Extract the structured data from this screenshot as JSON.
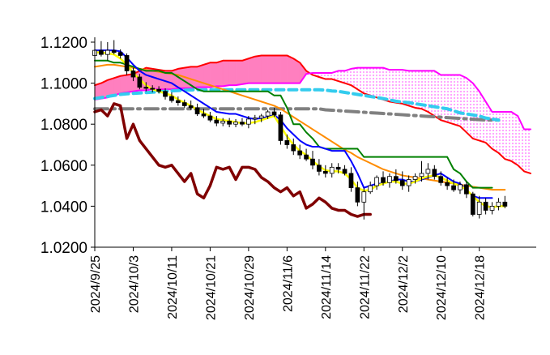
{
  "chart_data": {
    "type": "candlestick",
    "title": "",
    "xlabel": "",
    "ylabel": "",
    "ylim": [
      1.02,
      1.12
    ],
    "y_ticks": [
      "1.1200",
      "1.1000",
      "1.0800",
      "1.0600",
      "1.0400",
      "1.0200"
    ],
    "y_tick_values": [
      1.12,
      1.1,
      1.08,
      1.06,
      1.04,
      1.02
    ],
    "x_tick_labels": [
      "2024/9/25",
      "2024/10/3",
      "2024/10/11",
      "2024/10/21",
      "2024/10/29",
      "2024/11/6",
      "2024/11/14",
      "2024/11/22",
      "2024/12/2",
      "2024/12/10",
      "2024/12/18"
    ],
    "x_tick_index": [
      0,
      6,
      12,
      18,
      24,
      30,
      36,
      42,
      48,
      54,
      60
    ],
    "n_slots": 69,
    "grid": false,
    "legend": "none",
    "colors": {
      "up": "#ffffff",
      "down": "#000000",
      "cloud_bull": "#ff7fbf",
      "cloud_bear": "#ff66ff",
      "span_a": "#ff0000",
      "span_b": "#ff00ff",
      "tenkan": "#0000ff",
      "kijun": "#008000",
      "chikou": "#800000",
      "ma_orange": "#ff8c00",
      "ma_yellow": "#ffff00",
      "trend_gray": "#808080",
      "trend_cyan": "#33ccee"
    },
    "candles": [
      [
        1.1135,
        1.1175,
        1.112,
        1.116
      ],
      [
        1.116,
        1.1205,
        1.113,
        1.114
      ],
      [
        1.114,
        1.12,
        1.111,
        1.116
      ],
      [
        1.116,
        1.121,
        1.114,
        1.115
      ],
      [
        1.115,
        1.1165,
        1.112,
        1.1135
      ],
      [
        1.1135,
        1.1145,
        1.104,
        1.106
      ],
      [
        1.106,
        1.1075,
        1.101,
        1.103
      ],
      [
        1.103,
        1.1045,
        1.097,
        1.098
      ],
      [
        1.098,
        1.1005,
        1.096,
        1.0975
      ],
      [
        1.0975,
        1.099,
        1.0955,
        1.097
      ],
      [
        1.097,
        1.0985,
        1.095,
        1.096
      ],
      [
        1.096,
        1.0975,
        1.092,
        1.0935
      ],
      [
        1.0935,
        1.0955,
        1.0905,
        1.0915
      ],
      [
        1.0915,
        1.0935,
        1.089,
        1.0905
      ],
      [
        1.0905,
        1.092,
        1.088,
        1.089
      ],
      [
        1.089,
        1.0915,
        1.087,
        1.088
      ],
      [
        1.088,
        1.09,
        1.084,
        1.085
      ],
      [
        1.085,
        1.0875,
        1.083,
        1.084
      ],
      [
        1.084,
        1.086,
        1.081,
        1.082
      ],
      [
        1.082,
        1.084,
        1.079,
        1.0805
      ],
      [
        1.0805,
        1.083,
        1.079,
        1.0815
      ],
      [
        1.0815,
        1.083,
        1.0785,
        1.08
      ],
      [
        1.08,
        1.0825,
        1.0785,
        1.081
      ],
      [
        1.081,
        1.083,
        1.079,
        1.08
      ],
      [
        1.08,
        1.084,
        1.078,
        1.0825
      ],
      [
        1.0825,
        1.0845,
        1.08,
        1.083
      ],
      [
        1.083,
        1.085,
        1.081,
        1.084
      ],
      [
        1.084,
        1.087,
        1.0825,
        1.086
      ],
      [
        1.086,
        1.088,
        1.0835,
        1.0845
      ],
      [
        1.0845,
        1.086,
        1.07,
        1.072
      ],
      [
        1.072,
        1.075,
        1.068,
        1.07
      ],
      [
        1.07,
        1.073,
        1.065,
        1.067
      ],
      [
        1.067,
        1.07,
        1.063,
        1.065
      ],
      [
        1.065,
        1.068,
        1.062,
        1.063
      ],
      [
        1.063,
        1.067,
        1.058,
        1.06
      ],
      [
        1.06,
        1.063,
        1.055,
        1.057
      ],
      [
        1.057,
        1.06,
        1.054,
        1.056
      ],
      [
        1.056,
        1.061,
        1.054,
        1.059
      ],
      [
        1.059,
        1.061,
        1.056,
        1.058
      ],
      [
        1.058,
        1.06,
        1.055,
        1.056
      ],
      [
        1.056,
        1.059,
        1.047,
        1.049
      ],
      [
        1.049,
        1.052,
        1.04,
        1.042
      ],
      [
        1.042,
        1.049,
        1.0335,
        1.047
      ],
      [
        1.047,
        1.052,
        1.046,
        1.05
      ],
      [
        1.05,
        1.055,
        1.048,
        1.054
      ],
      [
        1.054,
        1.057,
        1.05,
        1.0515
      ],
      [
        1.0515,
        1.056,
        1.049,
        1.0545
      ],
      [
        1.0545,
        1.058,
        1.051,
        1.0525
      ],
      [
        1.0525,
        1.057,
        1.048,
        1.05
      ],
      [
        1.05,
        1.055,
        1.047,
        1.053
      ],
      [
        1.053,
        1.056,
        1.051,
        1.0545
      ],
      [
        1.0545,
        1.062,
        1.052,
        1.056
      ],
      [
        1.056,
        1.061,
        1.053,
        1.058
      ],
      [
        1.058,
        1.06,
        1.053,
        1.0545
      ],
      [
        1.0545,
        1.057,
        1.05,
        1.0515
      ],
      [
        1.0515,
        1.054,
        1.048,
        1.05
      ],
      [
        1.05,
        1.053,
        1.047,
        1.048
      ],
      [
        1.048,
        1.052,
        1.046,
        1.0505
      ],
      [
        1.0505,
        1.052,
        1.044,
        1.046
      ],
      [
        1.046,
        1.047,
        1.035,
        1.036
      ],
      [
        1.036,
        1.045,
        1.034,
        1.042
      ],
      [
        1.042,
        1.044,
        1.036,
        1.038
      ],
      [
        1.038,
        1.042,
        1.036,
        1.04
      ],
      [
        1.04,
        1.044,
        1.038,
        1.042
      ],
      [
        1.042,
        1.045,
        1.039,
        1.04
      ]
    ],
    "series": [
      {
        "key": "span_a",
        "start": 0,
        "values": [
          1.099,
          1.1,
          1.1015,
          1.1025,
          1.1035,
          1.104,
          1.1045,
          1.106,
          1.1075,
          1.107,
          1.1065,
          1.106,
          1.106,
          1.107,
          1.1075,
          1.108,
          1.108,
          1.109,
          1.11,
          1.11,
          1.111,
          1.111,
          1.111,
          1.111,
          1.112,
          1.113,
          1.1135,
          1.1135,
          1.1135,
          1.1135,
          1.1135,
          1.112,
          1.11,
          1.106,
          1.104,
          1.103,
          1.102,
          1.102,
          1.101,
          1.1,
          1.099,
          1.097,
          1.095,
          1.094,
          1.093,
          1.092,
          1.091,
          1.0905,
          1.09,
          1.089,
          1.088,
          1.0875,
          1.086,
          1.084,
          1.082,
          1.081,
          1.08,
          1.079,
          1.076,
          1.073,
          1.072,
          1.071,
          1.068,
          1.066,
          1.063,
          1.062,
          1.06,
          1.057,
          1.056
        ]
      },
      {
        "key": "span_b",
        "start": 0,
        "values": [
          1.092,
          1.0925,
          1.093,
          1.094,
          1.095,
          1.0955,
          1.096,
          1.0965,
          1.0965,
          1.097,
          1.097,
          1.097,
          1.097,
          1.0975,
          1.0975,
          1.0975,
          1.098,
          1.098,
          1.098,
          1.0985,
          1.0985,
          1.099,
          1.099,
          1.0995,
          1.1,
          1.1,
          1.1,
          1.1,
          1.1,
          1.1,
          1.1,
          1.1,
          1.1,
          1.1045,
          1.105,
          1.105,
          1.105,
          1.105,
          1.106,
          1.106,
          1.107,
          1.1075,
          1.1075,
          1.1075,
          1.1075,
          1.1075,
          1.1065,
          1.1065,
          1.1065,
          1.106,
          1.106,
          1.106,
          1.106,
          1.106,
          1.104,
          1.104,
          1.104,
          1.104,
          1.1025,
          1.1,
          1.096,
          1.091,
          1.086,
          1.086,
          1.086,
          1.086,
          1.084,
          1.0775,
          1.0775
        ]
      },
      {
        "key": "tenkan",
        "start": 0,
        "values": [
          1.116,
          1.116,
          1.116,
          1.116,
          1.1155,
          1.1125,
          1.109,
          1.106,
          1.104,
          1.103,
          1.102,
          1.101,
          1.1,
          1.098,
          1.096,
          1.094,
          1.092,
          1.09,
          1.088,
          1.086,
          1.0855,
          1.085,
          1.085,
          1.084,
          1.083,
          1.0825,
          1.083,
          1.0835,
          1.0845,
          1.082,
          1.078,
          1.075,
          1.072,
          1.07,
          1.069,
          1.069,
          1.068,
          1.067,
          1.067,
          1.067,
          1.062,
          1.056,
          1.049,
          1.05,
          1.051,
          1.051,
          1.052,
          1.053,
          1.053,
          1.052,
          1.052,
          1.053,
          1.054,
          1.055,
          1.056,
          1.054,
          1.052,
          1.051,
          1.048,
          1.045,
          1.044,
          1.044,
          1.044
        ]
      },
      {
        "key": "kijun",
        "start": 0,
        "values": [
          1.111,
          1.111,
          1.111,
          1.11,
          1.11,
          1.109,
          1.108,
          1.107,
          1.106,
          1.106,
          1.106,
          1.105,
          1.105,
          1.103,
          1.101,
          1.099,
          1.097,
          1.096,
          1.096,
          1.096,
          1.096,
          1.096,
          1.096,
          1.096,
          1.096,
          1.096,
          1.096,
          1.096,
          1.094,
          1.094,
          1.088,
          1.08,
          1.08,
          1.076,
          1.073,
          1.069,
          1.068,
          1.068,
          1.068,
          1.068,
          1.068,
          1.068,
          1.064,
          1.064,
          1.064,
          1.064,
          1.064,
          1.064,
          1.064,
          1.064,
          1.064,
          1.064,
          1.064,
          1.064,
          1.064,
          1.064,
          1.058,
          1.056,
          1.052,
          1.049,
          1.049,
          1.049,
          1.049
        ]
      },
      {
        "key": "chikou",
        "start": 0,
        "values": [
          1.086,
          1.087,
          1.084,
          1.09,
          1.089,
          1.073,
          1.08,
          1.072,
          1.068,
          1.064,
          1.06,
          1.059,
          1.06,
          1.056,
          1.052,
          1.056,
          1.046,
          1.044,
          1.05,
          1.059,
          1.058,
          1.059,
          1.053,
          1.059,
          1.059,
          1.058,
          1.054,
          1.052,
          1.049,
          1.047,
          1.049,
          1.045,
          1.047,
          1.039,
          1.041,
          1.044,
          1.042,
          1.039,
          1.038,
          1.038,
          1.036,
          1.035,
          1.036,
          1.036
        ]
      },
      {
        "key": "ma_orange",
        "start": 0,
        "values": [
          1.108,
          1.1085,
          1.109,
          1.109,
          1.1085,
          1.108,
          1.1075,
          1.107,
          1.1065,
          1.106,
          1.1055,
          1.105,
          1.1045,
          1.104,
          1.103,
          1.102,
          1.101,
          1.1,
          1.099,
          1.098,
          1.097,
          1.096,
          1.095,
          1.094,
          1.093,
          1.092,
          1.091,
          1.09,
          1.089,
          1.0875,
          1.0855,
          1.0835,
          1.0815,
          1.0795,
          1.0775,
          1.0755,
          1.0735,
          1.0715,
          1.0695,
          1.0675,
          1.066,
          1.064,
          1.0625,
          1.061,
          1.0595,
          1.058,
          1.057,
          1.056,
          1.055,
          1.0545,
          1.054,
          1.0535,
          1.053,
          1.0525,
          1.052,
          1.0515,
          1.051,
          1.0505,
          1.05,
          1.0495,
          1.049,
          1.0485,
          1.048,
          1.048,
          1.048
        ]
      },
      {
        "key": "ma_yellow",
        "start": 0,
        "values": [
          1.115,
          1.115,
          1.1145,
          1.114,
          1.112,
          1.109,
          1.105,
          1.102,
          1.099,
          1.097,
          1.096,
          1.095,
          1.094,
          1.092,
          1.0905,
          1.089,
          1.087,
          1.0855,
          1.084,
          1.0825,
          1.082,
          1.0815,
          1.081,
          1.0805,
          1.0805,
          1.081,
          1.082,
          1.083,
          1.084,
          1.079,
          1.074,
          1.07,
          1.067,
          1.065,
          1.062,
          1.0595,
          1.0575,
          1.057,
          1.057,
          1.056,
          1.053,
          1.049,
          1.0475,
          1.048,
          1.05,
          1.051,
          1.052,
          1.052,
          1.051,
          1.051,
          1.052,
          1.0535,
          1.0545,
          1.055,
          1.054,
          1.0525,
          1.051,
          1.05,
          1.048,
          1.045,
          1.042,
          1.04,
          1.0395,
          1.04,
          1.04
        ]
      },
      {
        "key": "trend_gray",
        "start": 0,
        "values": [
          1.0875,
          1.0875,
          1.0875,
          1.0875,
          1.0875,
          1.0875,
          1.0875,
          1.0875,
          1.0875,
          1.0875,
          1.0875,
          1.0875,
          1.0875,
          1.0875,
          1.0875,
          1.0875,
          1.0875,
          1.0875,
          1.0875,
          1.0875,
          1.0875,
          1.0875,
          1.0875,
          1.0875,
          1.0875,
          1.0875,
          1.0875,
          1.0875,
          1.0875,
          1.0875,
          1.0875,
          1.0875,
          1.0875,
          1.0875,
          1.0875,
          1.0875,
          1.087,
          1.0868,
          1.0866,
          1.0864,
          1.0862,
          1.086,
          1.0858,
          1.0856,
          1.0854,
          1.0852,
          1.085,
          1.0848,
          1.0846,
          1.0844,
          1.0842,
          1.084,
          1.0838,
          1.0836,
          1.0834,
          1.0832,
          1.083,
          1.0828,
          1.0826,
          1.0824,
          1.0822,
          1.082,
          1.082,
          1.082
        ]
      },
      {
        "key": "trend_cyan",
        "start": 0,
        "values": [
          1.0925,
          1.093,
          1.0935,
          1.094,
          1.0945,
          1.0948,
          1.095,
          1.0952,
          1.0954,
          1.0956,
          1.0958,
          1.096,
          1.0962,
          1.0964,
          1.0966,
          1.0967,
          1.0968,
          1.0968,
          1.0968,
          1.0968,
          1.0968,
          1.0968,
          1.0968,
          1.0968,
          1.0968,
          1.0968,
          1.0968,
          1.0968,
          1.0968,
          1.0968,
          1.0968,
          1.0968,
          1.0968,
          1.0968,
          1.0968,
          1.0968,
          1.0966,
          1.0962,
          1.096,
          1.0955,
          1.095,
          1.0945,
          1.094,
          1.0935,
          1.093,
          1.0925,
          1.0918,
          1.0912,
          1.0908,
          1.0905,
          1.09,
          1.0895,
          1.089,
          1.0885,
          1.088,
          1.0875,
          1.0865,
          1.0855,
          1.085,
          1.0845,
          1.084,
          1.083,
          1.0825,
          1.082
        ]
      }
    ]
  }
}
